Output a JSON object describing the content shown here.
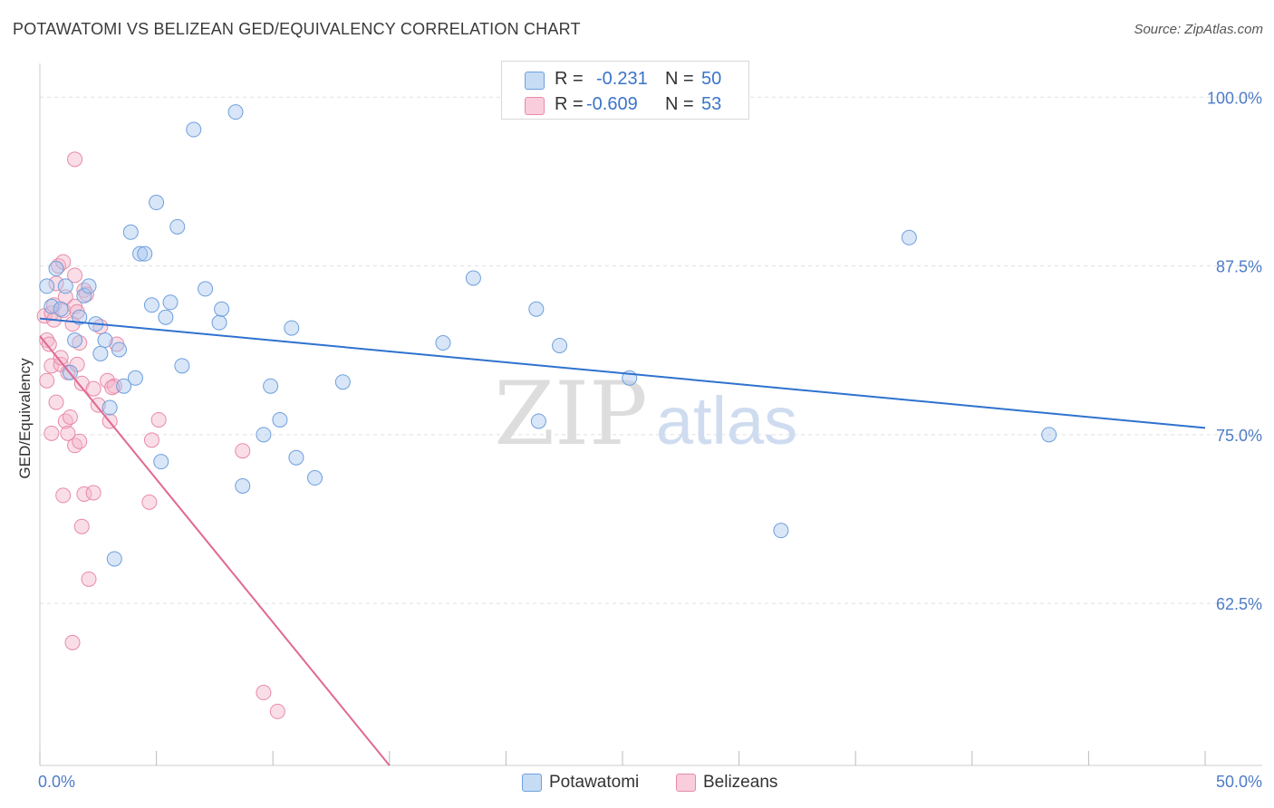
{
  "title": "POTAWATOMI VS BELIZEAN GED/EQUIVALENCY CORRELATION CHART",
  "source": "Source: ZipAtlas.com",
  "watermark": {
    "zip": "ZIP",
    "atlas": "atlas"
  },
  "legend": {
    "r_label": "R =",
    "n_label": "N =",
    "rows": [
      {
        "name": "Potawatomi",
        "r": "-0.231",
        "n": "50"
      },
      {
        "name": "Belizeans",
        "r": "-0.609",
        "n": "53"
      }
    ]
  },
  "colors": {
    "blue_fill": "#a8c8f0",
    "blue_stroke": "#6e9fdc",
    "blue_line": "#2f72cf",
    "pink_fill": "#f5b5c9",
    "pink_stroke": "#e88aa8",
    "pink_line": "#e0698f",
    "axis_text": "#4d7cc7",
    "grid": "#e0e0e0"
  },
  "chart_data": {
    "type": "scatter",
    "title": "POTAWATOMI VS BELIZEAN GED/EQUIVALENCY CORRELATION CHART",
    "xlabel": "",
    "ylabel": "GED/Equivalency",
    "xlim": [
      0,
      50
    ],
    "ylim": [
      50.5,
      102.5
    ],
    "x_tick_labels": [
      "0.0%",
      "50.0%"
    ],
    "y_ticks": [
      62.5,
      75.0,
      87.5,
      100.0
    ],
    "y_tick_labels": [
      "62.5%",
      "75.0%",
      "87.5%",
      "100.0%"
    ],
    "series": [
      {
        "name": "Potawatomi",
        "color": "blue",
        "trend": {
          "x": [
            0,
            50
          ],
          "y": [
            83.6,
            75.5
          ]
        },
        "points": [
          {
            "x": 0.3,
            "y": 86.0
          },
          {
            "x": 0.5,
            "y": 84.5
          },
          {
            "x": 0.7,
            "y": 87.3
          },
          {
            "x": 0.9,
            "y": 84.3
          },
          {
            "x": 1.1,
            "y": 86.0
          },
          {
            "x": 1.3,
            "y": 79.6
          },
          {
            "x": 1.5,
            "y": 82.0
          },
          {
            "x": 1.7,
            "y": 83.7
          },
          {
            "x": 1.9,
            "y": 85.3
          },
          {
            "x": 2.1,
            "y": 86.0
          },
          {
            "x": 2.4,
            "y": 83.2
          },
          {
            "x": 2.6,
            "y": 81.0
          },
          {
            "x": 2.8,
            "y": 82.0
          },
          {
            "x": 3.0,
            "y": 77.0
          },
          {
            "x": 3.2,
            "y": 65.8
          },
          {
            "x": 3.4,
            "y": 81.3
          },
          {
            "x": 3.6,
            "y": 78.6
          },
          {
            "x": 3.9,
            "y": 90.0
          },
          {
            "x": 4.1,
            "y": 79.2
          },
          {
            "x": 4.3,
            "y": 88.4
          },
          {
            "x": 4.5,
            "y": 88.4
          },
          {
            "x": 4.8,
            "y": 84.6
          },
          {
            "x": 5.0,
            "y": 92.2
          },
          {
            "x": 5.2,
            "y": 73.0
          },
          {
            "x": 5.4,
            "y": 83.7
          },
          {
            "x": 5.6,
            "y": 84.8
          },
          {
            "x": 5.9,
            "y": 90.4
          },
          {
            "x": 6.1,
            "y": 80.1
          },
          {
            "x": 6.6,
            "y": 97.6
          },
          {
            "x": 7.1,
            "y": 85.8
          },
          {
            "x": 7.7,
            "y": 83.3
          },
          {
            "x": 7.8,
            "y": 84.3
          },
          {
            "x": 8.4,
            "y": 98.9
          },
          {
            "x": 8.7,
            "y": 71.2
          },
          {
            "x": 9.6,
            "y": 75.0
          },
          {
            "x": 9.9,
            "y": 78.6
          },
          {
            "x": 10.3,
            "y": 76.1
          },
          {
            "x": 10.8,
            "y": 82.9
          },
          {
            "x": 11.0,
            "y": 73.3
          },
          {
            "x": 11.8,
            "y": 71.8
          },
          {
            "x": 13.0,
            "y": 78.9
          },
          {
            "x": 17.3,
            "y": 81.8
          },
          {
            "x": 18.6,
            "y": 86.6
          },
          {
            "x": 21.3,
            "y": 84.3
          },
          {
            "x": 21.4,
            "y": 76.0
          },
          {
            "x": 22.3,
            "y": 81.6
          },
          {
            "x": 25.3,
            "y": 79.2
          },
          {
            "x": 31.8,
            "y": 67.9
          },
          {
            "x": 37.3,
            "y": 89.6
          },
          {
            "x": 43.3,
            "y": 75.0
          }
        ]
      },
      {
        "name": "Belizeans",
        "color": "pink",
        "trend": {
          "x": [
            0,
            15
          ],
          "y": [
            82.3,
            50.5
          ]
        },
        "points": [
          {
            "x": 0.2,
            "y": 83.8
          },
          {
            "x": 0.3,
            "y": 82.0
          },
          {
            "x": 0.3,
            "y": 79.0
          },
          {
            "x": 0.4,
            "y": 81.7
          },
          {
            "x": 0.5,
            "y": 84.0
          },
          {
            "x": 0.5,
            "y": 80.1
          },
          {
            "x": 0.5,
            "y": 75.1
          },
          {
            "x": 0.6,
            "y": 83.5
          },
          {
            "x": 0.6,
            "y": 84.6
          },
          {
            "x": 0.7,
            "y": 77.4
          },
          {
            "x": 0.7,
            "y": 86.2
          },
          {
            "x": 0.8,
            "y": 87.5
          },
          {
            "x": 0.9,
            "y": 80.2
          },
          {
            "x": 0.9,
            "y": 80.7
          },
          {
            "x": 1.0,
            "y": 84.2
          },
          {
            "x": 1.0,
            "y": 70.5
          },
          {
            "x": 1.0,
            "y": 87.8
          },
          {
            "x": 1.1,
            "y": 76.0
          },
          {
            "x": 1.1,
            "y": 85.2
          },
          {
            "x": 1.2,
            "y": 79.6
          },
          {
            "x": 1.2,
            "y": 75.1
          },
          {
            "x": 1.3,
            "y": 76.3
          },
          {
            "x": 1.4,
            "y": 83.2
          },
          {
            "x": 1.4,
            "y": 59.6
          },
          {
            "x": 1.5,
            "y": 84.5
          },
          {
            "x": 1.5,
            "y": 74.2
          },
          {
            "x": 1.5,
            "y": 86.8
          },
          {
            "x": 1.5,
            "y": 95.4
          },
          {
            "x": 1.6,
            "y": 84.1
          },
          {
            "x": 1.6,
            "y": 80.2
          },
          {
            "x": 1.7,
            "y": 81.8
          },
          {
            "x": 1.7,
            "y": 74.5
          },
          {
            "x": 1.8,
            "y": 78.8
          },
          {
            "x": 1.8,
            "y": 68.2
          },
          {
            "x": 1.9,
            "y": 85.7
          },
          {
            "x": 1.9,
            "y": 70.6
          },
          {
            "x": 2.0,
            "y": 85.4
          },
          {
            "x": 2.1,
            "y": 64.3
          },
          {
            "x": 2.3,
            "y": 70.7
          },
          {
            "x": 2.3,
            "y": 78.4
          },
          {
            "x": 2.5,
            "y": 77.2
          },
          {
            "x": 2.6,
            "y": 83.0
          },
          {
            "x": 2.9,
            "y": 79.0
          },
          {
            "x": 3.0,
            "y": 76.0
          },
          {
            "x": 3.2,
            "y": 78.6
          },
          {
            "x": 3.3,
            "y": 81.7
          },
          {
            "x": 4.7,
            "y": 70.0
          },
          {
            "x": 4.8,
            "y": 74.6
          },
          {
            "x": 5.1,
            "y": 76.1
          },
          {
            "x": 8.7,
            "y": 73.8
          },
          {
            "x": 9.6,
            "y": 55.9
          },
          {
            "x": 10.2,
            "y": 54.5
          },
          {
            "x": 3.1,
            "y": 78.5
          }
        ]
      }
    ]
  }
}
